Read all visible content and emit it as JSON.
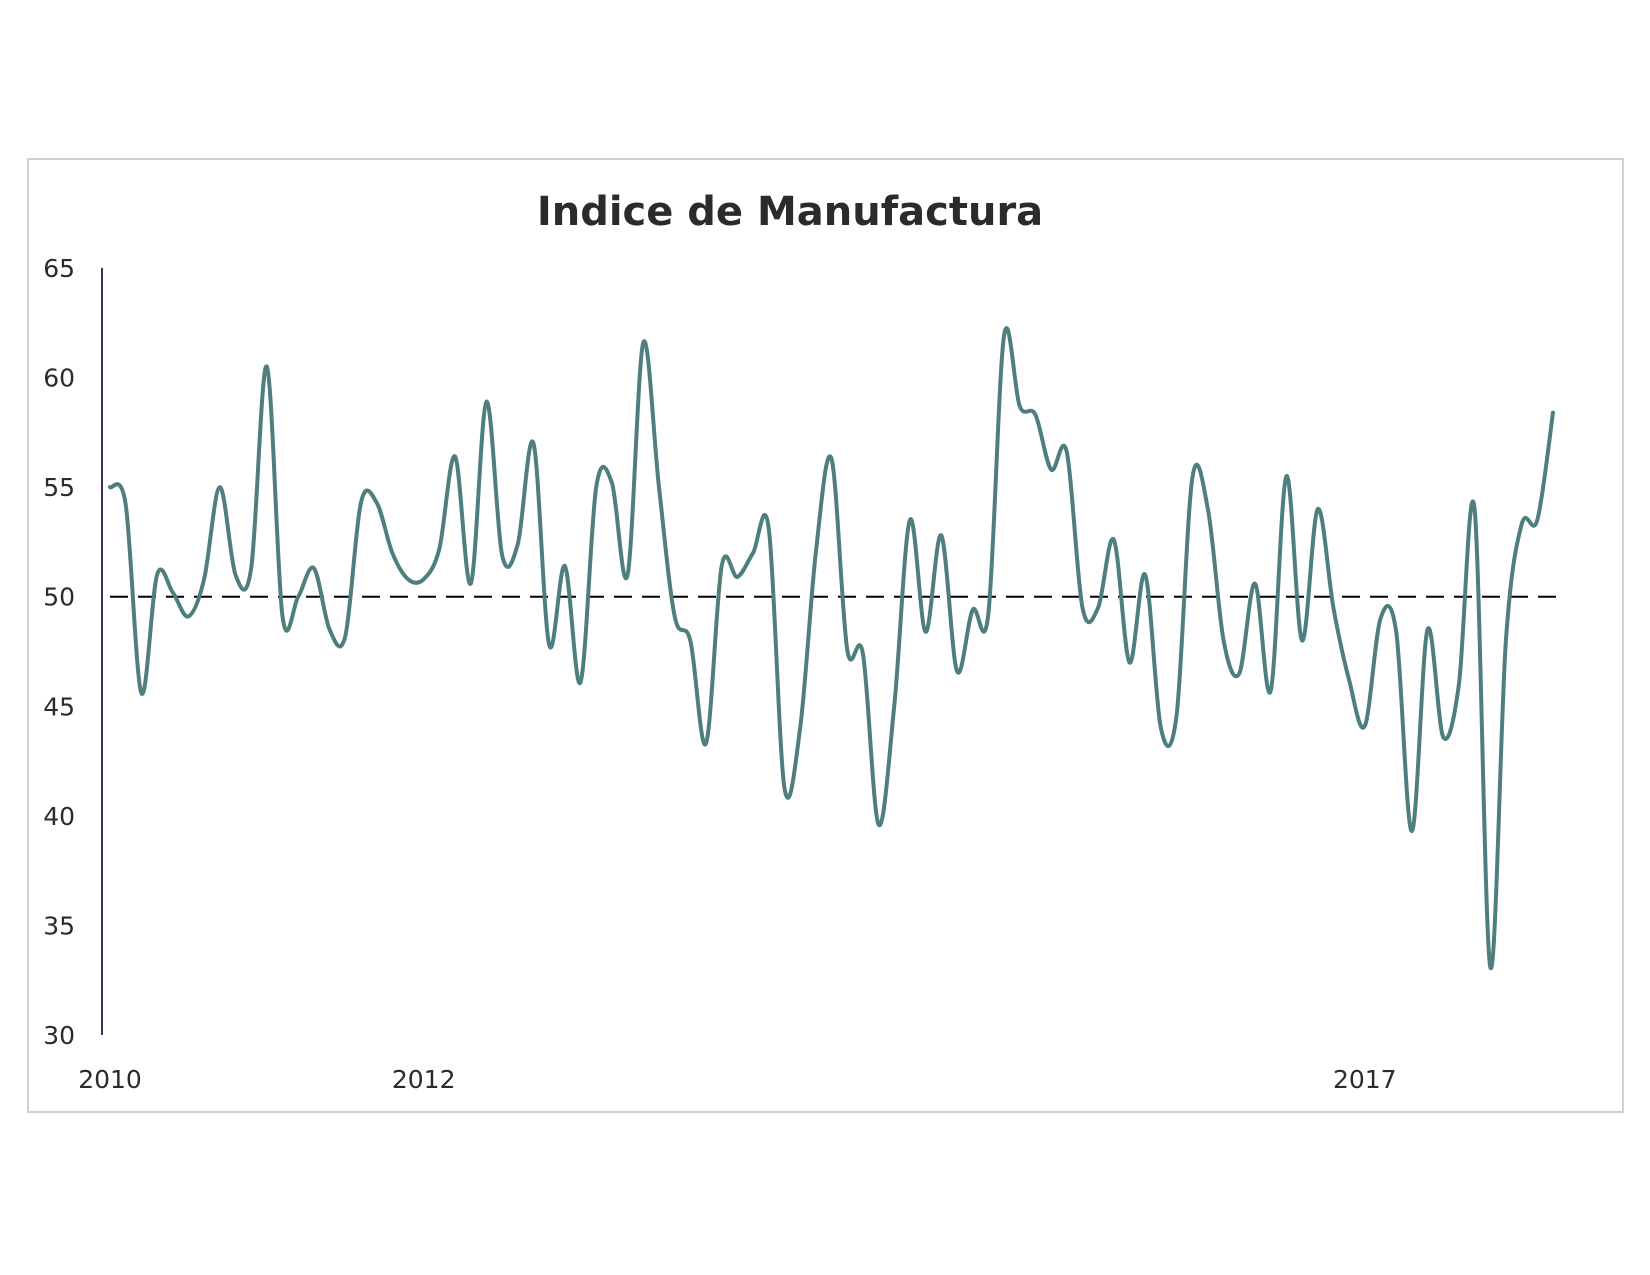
{
  "chart_data": {
    "type": "line",
    "title": "Indice de Manufactura",
    "xlabel": "",
    "ylabel": "",
    "ylim": [
      30,
      65
    ],
    "yticks": [
      "30",
      "35",
      "40",
      "45",
      "50",
      "55",
      "60",
      "65"
    ],
    "xticks": [
      {
        "label": "2010",
        "index": 0
      },
      {
        "label": "2012",
        "index": 20
      },
      {
        "label": "2017",
        "index": 80
      }
    ],
    "reference_line": {
      "y": 50,
      "style": "dashed",
      "color": "#000000"
    },
    "legend": "none",
    "grid": false,
    "colors": {
      "line": "#4e7f7e",
      "axis": "#3a3070"
    },
    "series": [
      {
        "values": [
          55.0,
          54.2,
          45.6,
          51.0,
          50.2,
          49.1,
          50.8,
          55.0,
          51.0,
          51.3,
          60.5,
          49.1,
          50.0,
          51.3,
          48.5,
          48.2,
          54.3,
          54.3,
          52.0,
          50.8,
          50.8,
          52.2,
          56.4,
          50.6,
          58.9,
          51.9,
          52.4,
          57.0,
          47.8,
          51.4,
          46.1,
          55.0,
          55.2,
          51.0,
          61.6,
          55.0,
          49.1,
          48.0,
          43.3,
          51.4,
          50.9,
          52.0,
          53.1,
          41.3,
          44.0,
          52.0,
          56.3,
          47.6,
          47.4,
          39.6,
          45.0,
          53.5,
          48.4,
          52.8,
          46.6,
          49.4,
          49.2,
          61.9,
          58.7,
          58.3,
          55.8,
          56.6,
          49.5,
          49.5,
          52.6,
          47.0,
          51.0,
          44.0,
          44.6,
          55.4,
          54.0,
          48.0,
          46.5,
          50.6,
          45.7,
          55.5,
          48.0,
          54.0,
          49.5,
          46.2,
          44.1,
          49.0,
          48.4,
          39.3,
          48.5,
          43.6,
          46.0,
          54.0,
          33.1,
          48.0,
          53.3,
          53.5,
          58.4
        ]
      }
    ]
  }
}
